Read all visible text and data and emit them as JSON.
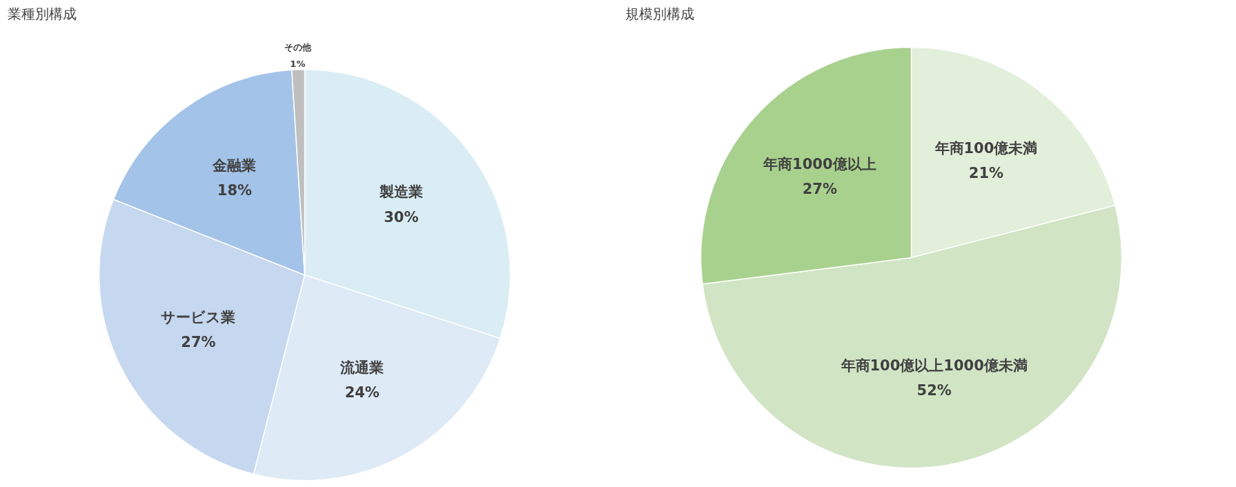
{
  "chart_data": [
    {
      "type": "pie",
      "title": "業種別構成",
      "categories": [
        "製造業",
        "流通業",
        "サービス業",
        "金融業",
        "その他"
      ],
      "values": [
        30,
        24,
        27,
        18,
        1
      ],
      "colors": [
        "#daedf4",
        "#deeaf6",
        "#c6d8ef",
        "#a4c3e9",
        "#bfbfbf"
      ],
      "value_labels": [
        "30%",
        "24%",
        "27%",
        "18%",
        "1%"
      ]
    },
    {
      "type": "pie",
      "title": "規模別構成",
      "categories": [
        "年商100億未満",
        "年商100億以上1000億未満",
        "年商1000億以上"
      ],
      "values": [
        21,
        52,
        27
      ],
      "colors": [
        "#e2efda",
        "#d1e5c5",
        "#a9d18e"
      ],
      "value_labels": [
        "21%",
        "52%",
        "27%"
      ]
    }
  ]
}
